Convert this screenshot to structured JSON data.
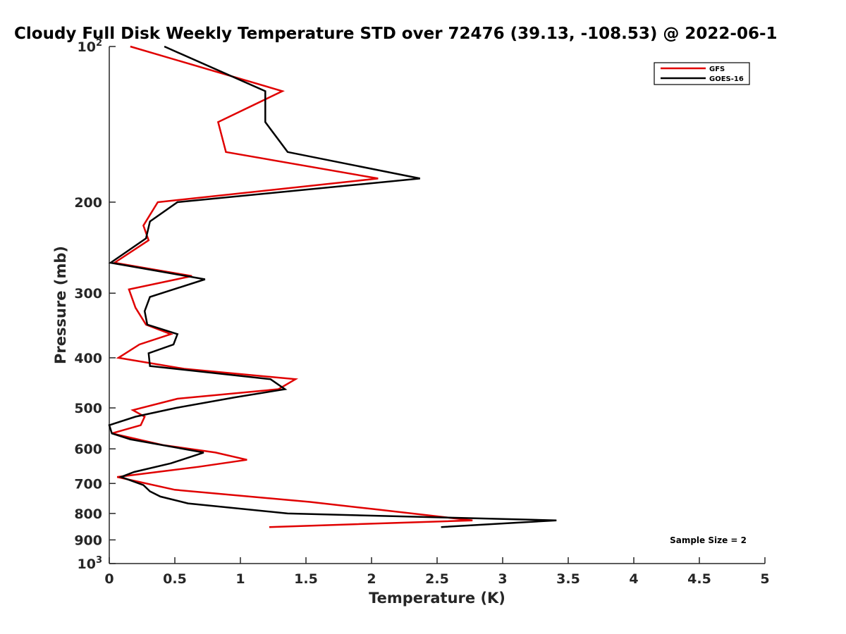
{
  "chart_data": {
    "type": "line",
    "title": "Cloudy Full Disk Weekly Temperature STD over 72476 (39.13, -108.53) @ 2022-06-1",
    "xlabel": "Temperature (K)",
    "ylabel": "Pressure (mb)",
    "xlim": [
      0,
      5
    ],
    "ylim": [
      100,
      1000
    ],
    "y_scale": "log",
    "y_reversed": true,
    "x_ticks": [
      "0",
      "0.5",
      "1",
      "1.5",
      "2",
      "2.5",
      "3",
      "3.5",
      "4",
      "4.5",
      "5"
    ],
    "y_ticks": [
      {
        "value": 100,
        "base": "10",
        "exp": "2"
      },
      {
        "value": 200,
        "label": "200"
      },
      {
        "value": 300,
        "label": "300"
      },
      {
        "value": 400,
        "label": "400"
      },
      {
        "value": 500,
        "label": "500"
      },
      {
        "value": 600,
        "label": "600"
      },
      {
        "value": 700,
        "label": "700"
      },
      {
        "value": 800,
        "label": "800"
      },
      {
        "value": 900,
        "label": "900"
      },
      {
        "value": 1000,
        "base": "10",
        "exp": "3"
      }
    ],
    "grid": false,
    "legend_position": "top-right",
    "annotation": "Sample Size = 2",
    "series": [
      {
        "name": "GFS",
        "color": "#e00000",
        "points": [
          [
            0.16,
            100
          ],
          [
            1.32,
            122
          ],
          [
            0.83,
            140
          ],
          [
            0.89,
            160
          ],
          [
            2.05,
            180
          ],
          [
            0.37,
            200
          ],
          [
            0.26,
            222
          ],
          [
            0.3,
            237
          ],
          [
            0.04,
            262
          ],
          [
            0.63,
            278
          ],
          [
            0.15,
            295
          ],
          [
            0.2,
            320
          ],
          [
            0.28,
            345
          ],
          [
            0.47,
            360
          ],
          [
            0.23,
            377
          ],
          [
            0.07,
            400
          ],
          [
            0.57,
            420
          ],
          [
            1.42,
            440
          ],
          [
            1.29,
            460
          ],
          [
            0.52,
            480
          ],
          [
            0.18,
            505
          ],
          [
            0.27,
            520
          ],
          [
            0.24,
            540
          ],
          [
            0.02,
            560
          ],
          [
            0.41,
            590
          ],
          [
            0.81,
            610
          ],
          [
            1.05,
            630
          ],
          [
            0.68,
            650
          ],
          [
            0.06,
            680
          ],
          [
            0.5,
            720
          ],
          [
            1.53,
            760
          ],
          [
            2.02,
            785
          ],
          [
            2.77,
            825
          ],
          [
            1.22,
            850
          ]
        ]
      },
      {
        "name": "GOES-16",
        "color": "#000000",
        "points": [
          [
            0.42,
            100
          ],
          [
            1.19,
            122
          ],
          [
            1.19,
            140
          ],
          [
            1.36,
            160
          ],
          [
            2.37,
            180
          ],
          [
            0.52,
            200
          ],
          [
            0.31,
            218
          ],
          [
            0.28,
            235
          ],
          [
            0.01,
            262
          ],
          [
            0.73,
            282
          ],
          [
            0.31,
            305
          ],
          [
            0.27,
            325
          ],
          [
            0.29,
            345
          ],
          [
            0.52,
            360
          ],
          [
            0.49,
            377
          ],
          [
            0.3,
            392
          ],
          [
            0.31,
            415
          ],
          [
            1.23,
            440
          ],
          [
            1.34,
            460
          ],
          [
            0.96,
            477
          ],
          [
            0.51,
            500
          ],
          [
            0.2,
            520
          ],
          [
            0.0,
            540
          ],
          [
            0.02,
            560
          ],
          [
            0.16,
            575
          ],
          [
            0.72,
            610
          ],
          [
            0.47,
            640
          ],
          [
            0.19,
            665
          ],
          [
            0.09,
            680
          ],
          [
            0.26,
            705
          ],
          [
            0.31,
            725
          ],
          [
            0.39,
            742
          ],
          [
            0.6,
            765
          ],
          [
            1.36,
            800
          ],
          [
            3.41,
            825
          ],
          [
            2.53,
            850
          ]
        ]
      }
    ]
  }
}
